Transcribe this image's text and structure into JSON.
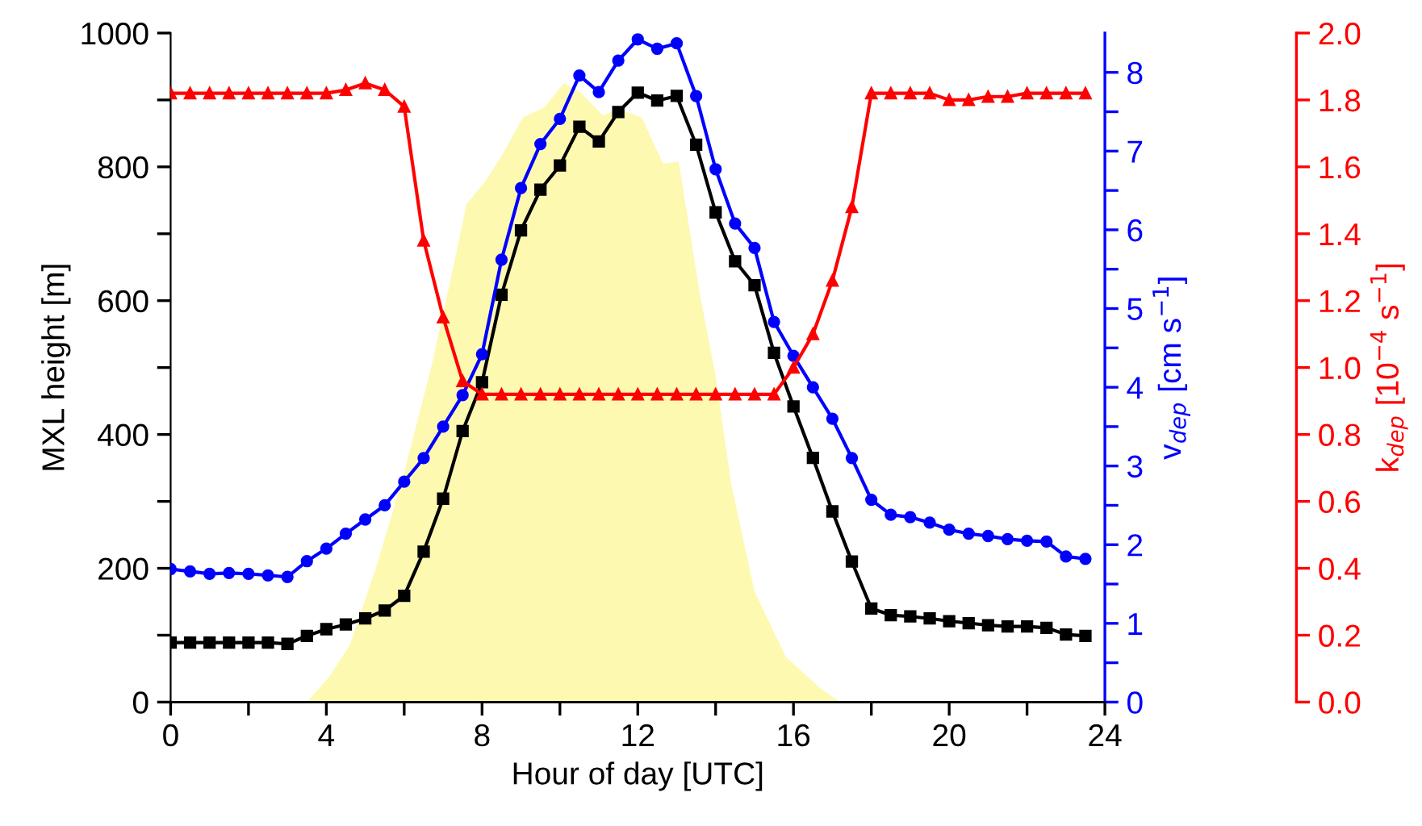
{
  "chart_data": {
    "type": "line",
    "xlabel": "Hour of day [UTC]",
    "ylabel": "MXL height [m]",
    "y2label": "v$_{dep}$ [cm s$^{−1}$]",
    "y3label": "k$_{dep}$ [10$^{−4}$ s$^{−1}$]",
    "xlim": [
      0,
      24
    ],
    "xticks": [
      0,
      {
        "value": 2,
        "label": null
      },
      4,
      {
        "value": 6,
        "label": null
      },
      8,
      {
        "value": 10,
        "label": null
      },
      12,
      {
        "value": 14,
        "label": null
      },
      16,
      {
        "value": 18,
        "label": null
      },
      20,
      {
        "value": 22,
        "label": null
      },
      24
    ],
    "ylim": [
      0,
      1000
    ],
    "yticks": [
      0,
      {
        "value": 100,
        "label": null
      },
      200,
      {
        "value": 300,
        "label": null
      },
      400,
      {
        "value": 500,
        "label": null
      },
      600,
      {
        "value": 700,
        "label": null
      },
      800,
      {
        "value": 900,
        "label": null
      },
      1000
    ],
    "y2lim": [
      0,
      8.5
    ],
    "y2ticks": [
      0,
      {
        "value": 0.5,
        "label": null
      },
      1,
      {
        "value": 1.5,
        "label": null
      },
      2,
      {
        "value": 2.5,
        "label": null
      },
      3,
      {
        "value": 3.5,
        "label": null
      },
      4,
      {
        "value": 4.5,
        "label": null
      },
      5,
      {
        "value": 5.5,
        "label": null
      },
      6,
      {
        "value": 6.5,
        "label": null
      },
      7,
      {
        "value": 7.5,
        "label": null
      },
      8
    ],
    "y3lim": [
      0,
      2
    ],
    "y3ticks": [
      {
        "value": 0,
        "label": "0.0"
      },
      0.2,
      0.4,
      0.6,
      0.8,
      {
        "value": 1,
        "label": "1.0"
      },
      1.2,
      1.4,
      1.6,
      1.8,
      {
        "value": 2,
        "label": "2.0"
      }
    ],
    "grid": false,
    "line_style": "solid",
    "series": [
      {
        "type": "area",
        "axis": "y",
        "color": "#fdf9b0",
        "x": [
          3.5,
          4.05,
          4.6,
          5.3,
          6.0,
          6.7,
          7.25,
          7.6,
          8.1,
          8.5,
          9.05,
          9.6,
          10.1,
          10.5,
          11.1,
          11.5,
          12.1,
          12.65,
          13.05,
          13.6,
          14.0,
          14.4,
          15.0,
          15.8,
          16.7,
          17.2
        ],
        "values": [
          0,
          36,
          85,
          205,
          343,
          502,
          647,
          744,
          780,
          816,
          874,
          889,
          925,
          913,
          877,
          886,
          874,
          805,
          808,
          608,
          488,
          326,
          165,
          68,
          20,
          0
        ]
      },
      {
        "axis": "y",
        "color": "#000000",
        "marker": "square",
        "x": [
          0,
          0.5,
          1,
          1.5,
          2,
          2.5,
          3,
          3.5,
          4,
          4.5,
          5,
          5.5,
          6,
          6.5,
          7,
          7.5,
          8,
          8.5,
          9,
          9.5,
          10,
          10.5,
          11,
          11.5,
          12,
          12.5,
          13,
          13.5,
          14,
          14.5,
          15,
          15.5,
          16,
          16.5,
          17,
          17.5,
          18,
          18.5,
          19,
          19.5,
          20,
          20.5,
          21,
          21.5,
          22,
          22.5,
          23,
          23.5
        ],
        "values": [
          89,
          89,
          89,
          89,
          89,
          89,
          87,
          99,
          109,
          116,
          125,
          137,
          159,
          225,
          304,
          405,
          478,
          609,
          705,
          766,
          802,
          860,
          838,
          882,
          911,
          899,
          906,
          833,
          732,
          659,
          623,
          522,
          442,
          365,
          285,
          210,
          140,
          130,
          128,
          125,
          121,
          118,
          115,
          113,
          113,
          111,
          101,
          99
        ]
      },
      {
        "axis": "y2",
        "color": "#0000ff",
        "marker": "circle",
        "x": [
          0,
          0.5,
          1,
          1.5,
          2,
          2.5,
          3,
          3.5,
          4,
          4.5,
          5,
          5.5,
          6,
          6.5,
          7,
          7.5,
          8,
          8.5,
          9,
          9.5,
          10,
          10.5,
          11,
          11.5,
          12,
          12.5,
          13,
          13.5,
          14,
          14.5,
          15,
          15.5,
          16,
          16.5,
          17,
          17.5,
          18,
          18.5,
          19,
          19.5,
          20,
          20.5,
          21,
          21.5,
          22,
          22.5,
          23,
          23.5
        ],
        "values": [
          1.69,
          1.66,
          1.63,
          1.64,
          1.63,
          1.61,
          1.59,
          1.79,
          1.95,
          2.14,
          2.32,
          2.5,
          2.8,
          3.1,
          3.5,
          3.9,
          4.42,
          5.62,
          6.53,
          7.09,
          7.41,
          7.96,
          7.75,
          8.15,
          8.42,
          8.3,
          8.37,
          7.7,
          6.77,
          6.08,
          5.77,
          4.83,
          4.4,
          4.0,
          3.6,
          3.1,
          2.57,
          2.38,
          2.35,
          2.28,
          2.19,
          2.14,
          2.11,
          2.07,
          2.05,
          2.04,
          1.85,
          1.82
        ]
      },
      {
        "axis": "y3",
        "color": "#ff0000",
        "marker": "triangle",
        "x": [
          0,
          0.5,
          1,
          1.5,
          2,
          2.5,
          3,
          3.5,
          4,
          4.5,
          5,
          5.5,
          6,
          6.5,
          7,
          7.5,
          8,
          8.5,
          9,
          9.5,
          10,
          10.5,
          11,
          11.5,
          12,
          12.5,
          13,
          13.5,
          14,
          14.5,
          15,
          15.5,
          16,
          16.5,
          17,
          17.5,
          18,
          18.5,
          19,
          19.5,
          20,
          20.5,
          21,
          21.5,
          22,
          22.5,
          23,
          23.5
        ],
        "values": [
          1.82,
          1.82,
          1.82,
          1.82,
          1.82,
          1.82,
          1.82,
          1.82,
          1.82,
          1.83,
          1.85,
          1.83,
          1.78,
          1.38,
          1.15,
          0.96,
          0.92,
          0.92,
          0.92,
          0.92,
          0.92,
          0.92,
          0.92,
          0.92,
          0.92,
          0.92,
          0.92,
          0.92,
          0.92,
          0.92,
          0.92,
          0.92,
          1.0,
          1.1,
          1.26,
          1.48,
          1.82,
          1.82,
          1.82,
          1.82,
          1.8,
          1.8,
          1.81,
          1.81,
          1.82,
          1.82,
          1.82,
          1.82
        ]
      }
    ]
  }
}
